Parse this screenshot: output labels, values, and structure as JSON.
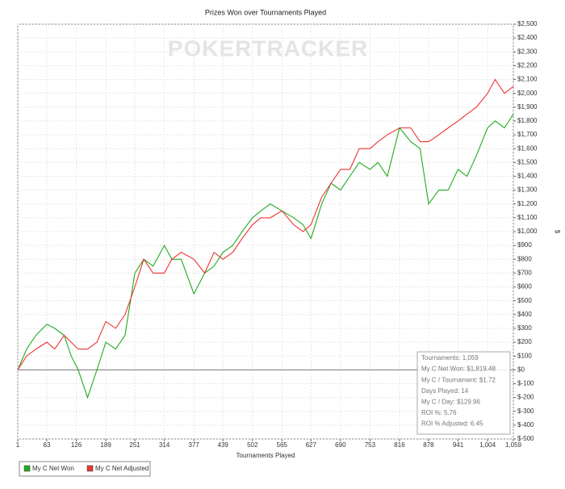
{
  "chart_data": {
    "type": "line",
    "title": "Prizes Won over Tournaments Played",
    "watermark": "POKERTRACKER",
    "xlabel": "Tournaments Played",
    "ylabel": "$",
    "xlim": [
      1,
      1059
    ],
    "ylim": [
      -500,
      2500
    ],
    "xticks": [
      1,
      63,
      126,
      189,
      251,
      314,
      377,
      439,
      502,
      565,
      627,
      690,
      753,
      816,
      878,
      941,
      {
        "value": 1004,
        "label": "1,004"
      },
      {
        "value": 1059,
        "label": "1,059"
      }
    ],
    "yticks": [
      {
        "value": -500,
        "label": "$-500"
      },
      {
        "value": -400,
        "label": "$-400"
      },
      {
        "value": -300,
        "label": "$-300"
      },
      {
        "value": -200,
        "label": "$-200"
      },
      {
        "value": -100,
        "label": "$-100"
      },
      {
        "value": 0,
        "label": "$0"
      },
      {
        "value": 100,
        "label": "$100"
      },
      {
        "value": 200,
        "label": "$200"
      },
      {
        "value": 300,
        "label": "$300"
      },
      {
        "value": 400,
        "label": "$400"
      },
      {
        "value": 500,
        "label": "$500"
      },
      {
        "value": 600,
        "label": "$600"
      },
      {
        "value": 700,
        "label": "$700"
      },
      {
        "value": 800,
        "label": "$800"
      },
      {
        "value": 900,
        "label": "$900"
      },
      {
        "value": 1000,
        "label": "$1,000"
      },
      {
        "value": 1100,
        "label": "$1,100"
      },
      {
        "value": 1200,
        "label": "$1,200"
      },
      {
        "value": 1300,
        "label": "$1,300"
      },
      {
        "value": 1400,
        "label": "$1,400"
      },
      {
        "value": 1500,
        "label": "$1,500"
      },
      {
        "value": 1600,
        "label": "$1,600"
      },
      {
        "value": 1700,
        "label": "$1,700"
      },
      {
        "value": 1800,
        "label": "$1,800"
      },
      {
        "value": 1900,
        "label": "$1,900"
      },
      {
        "value": 2000,
        "label": "$2,000"
      },
      {
        "value": 2100,
        "label": "$2,100"
      },
      {
        "value": 2200,
        "label": "$2,200"
      },
      {
        "value": 2300,
        "label": "$2,300"
      },
      {
        "value": 2400,
        "label": "$2,400"
      },
      {
        "value": 2500,
        "label": "$2,500"
      }
    ],
    "grid": true,
    "x": [
      1,
      20,
      40,
      63,
      80,
      100,
      115,
      130,
      150,
      170,
      189,
      210,
      230,
      251,
      270,
      290,
      314,
      330,
      350,
      377,
      400,
      420,
      439,
      460,
      480,
      502,
      520,
      540,
      565,
      590,
      610,
      627,
      650,
      670,
      690,
      710,
      730,
      753,
      770,
      790,
      816,
      840,
      860,
      878,
      900,
      920,
      941,
      960,
      980,
      1004,
      1020,
      1040,
      1059
    ],
    "series": [
      {
        "name": "My C Net Won",
        "color": "#22aa22",
        "values": [
          0,
          150,
          250,
          330,
          300,
          250,
          100,
          0,
          -200,
          0,
          200,
          150,
          250,
          700,
          800,
          750,
          900,
          800,
          800,
          550,
          700,
          750,
          850,
          900,
          1000,
          1100,
          1150,
          1200,
          1150,
          1100,
          1050,
          950,
          1200,
          1350,
          1300,
          1400,
          1500,
          1450,
          1500,
          1400,
          1750,
          1650,
          1600,
          1200,
          1300,
          1300,
          1450,
          1400,
          1550,
          1750,
          1800,
          1750,
          1850
        ]
      },
      {
        "name": "My C Net Adjusted",
        "color": "#ee3333",
        "values": [
          0,
          100,
          150,
          200,
          150,
          250,
          200,
          150,
          150,
          200,
          350,
          300,
          400,
          600,
          800,
          700,
          700,
          800,
          850,
          800,
          700,
          850,
          800,
          850,
          950,
          1050,
          1100,
          1100,
          1150,
          1050,
          1000,
          1050,
          1250,
          1350,
          1450,
          1450,
          1600,
          1600,
          1650,
          1700,
          1750,
          1750,
          1650,
          1650,
          1700,
          1750,
          1800,
          1850,
          1900,
          2000,
          2100,
          2000,
          2050
        ]
      }
    ],
    "annotations": [
      "Tournaments: 1,059",
      "My C Net Won: $1,819.48",
      "My C / Tournament: $1.72",
      "Days Played: 14",
      "My C / Day: $129.96",
      "ROI %: 5.76",
      "ROI % Adjusted: 6.45"
    ]
  }
}
